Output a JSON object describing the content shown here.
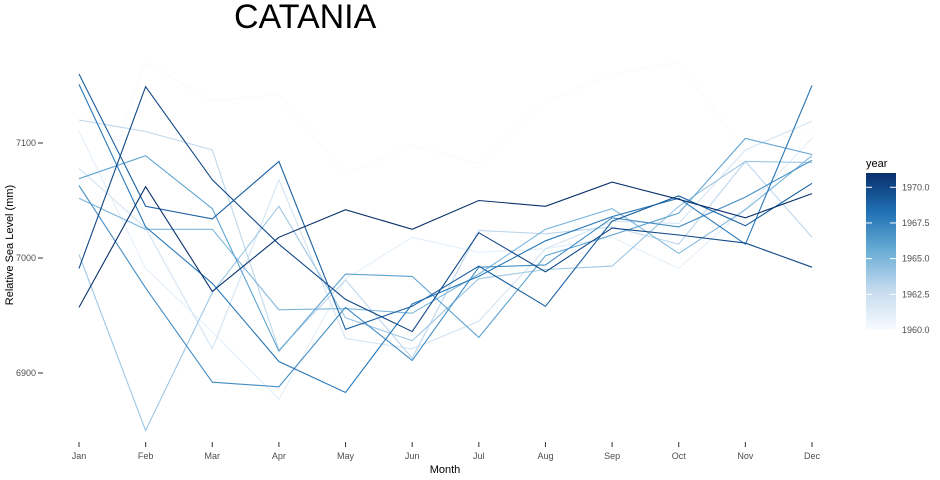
{
  "chart_data": {
    "type": "line",
    "title": "CATANIA",
    "xlabel": "Month",
    "ylabel": "Relative Sea Level (mm)",
    "categories": [
      "Jan",
      "Feb",
      "Mar",
      "Apr",
      "May",
      "Jun",
      "Jul",
      "Aug",
      "Sep",
      "Oct",
      "Nov",
      "Dec"
    ],
    "y_ticks": [
      6900,
      7000,
      7100
    ],
    "ylim": [
      6845,
      7175
    ],
    "grid": false,
    "legend": {
      "title": "year",
      "placement": "right",
      "type": "colorbar",
      "range": [
        1960,
        1971
      ],
      "ticks": [
        "1960.0",
        "1962.5",
        "1965.0",
        "1967.5",
        "1970.0"
      ],
      "tick_values": [
        1960,
        1962.5,
        1965,
        1967.5,
        1970
      ],
      "color_low": "#f7fbff",
      "color_high": "#08306b"
    },
    "series": [
      {
        "year": 1960,
        "values": [
          7001,
          7170,
          7137,
          7142,
          7073,
          7098,
          7082,
          7136,
          7160,
          7170,
          7092,
          7111
        ]
      },
      {
        "year": 1961,
        "values": [
          7110,
          6991,
          6936,
          6877,
          6982,
          7018,
          7005,
          7008,
          7018,
          6991,
          7043,
          7104
        ]
      },
      {
        "year": 1962,
        "values": [
          7078,
          7026,
          6921,
          7068,
          6930,
          6921,
          6945,
          7008,
          7032,
          7030,
          7094,
          7119
        ]
      },
      {
        "year": 1963,
        "values": [
          7120,
          7110,
          7094,
          6920,
          6981,
          6913,
          7024,
          7021,
          7027,
          7012,
          7084,
          7018
        ]
      },
      {
        "year": 1964,
        "values": [
          7003,
          6850,
          6970,
          7045,
          6948,
          6928,
          6982,
          6990,
          6993,
          7045,
          7084,
          7083
        ]
      },
      {
        "year": 1965,
        "values": [
          7052,
          7025,
          7025,
          6955,
          6956,
          6952,
          6986,
          7025,
          7043,
          7004,
          7042,
          7089
        ]
      },
      {
        "year": 1966,
        "values": [
          7069,
          7089,
          7043,
          6919,
          6986,
          6984,
          6931,
          7002,
          7020,
          7039,
          7104,
          7090
        ]
      },
      {
        "year": 1967,
        "values": [
          7063,
          6974,
          6892,
          6888,
          6957,
          6911,
          6992,
          6994,
          7035,
          7027,
          7053,
          7085
        ]
      },
      {
        "year": 1968,
        "values": [
          7151,
          7027,
          6978,
          6910,
          6883,
          6960,
          6984,
          7015,
          7036,
          7052,
          7012,
          7150
        ]
      },
      {
        "year": 1969,
        "values": [
          7160,
          7045,
          7034,
          7084,
          6938,
          6958,
          6993,
          6958,
          7032,
          7054,
          7028,
          7065
        ]
      },
      {
        "year": 1970,
        "values": [
          6991,
          7149,
          7068,
          7012,
          6964,
          6936,
          7022,
          6988,
          7026,
          7020,
          7013,
          6992
        ]
      },
      {
        "year": 1971,
        "values": [
          6957,
          7062,
          6971,
          7018,
          7042,
          7025,
          7050,
          7045,
          7066,
          7051,
          7035,
          7056
        ]
      }
    ]
  }
}
